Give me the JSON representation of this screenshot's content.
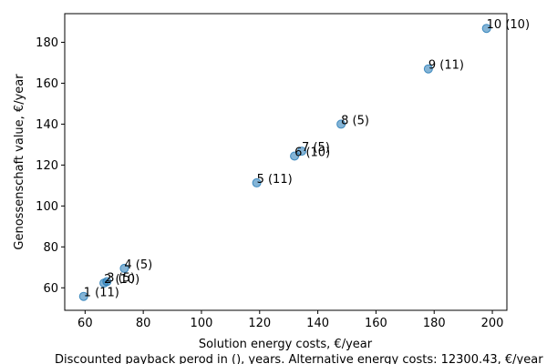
{
  "chart_data": {
    "type": "scatter",
    "xlabel": "Solution energy costs, €/year",
    "ylabel": "Genossenschaft value, €/year",
    "caption": "Discounted payback perod in (), years. Alternative energy costs: 12300.43, €/year",
    "xlim": [
      53,
      205
    ],
    "ylim": [
      49,
      194
    ],
    "xticks": [
      60,
      80,
      100,
      120,
      140,
      160,
      180,
      200
    ],
    "yticks": [
      60,
      80,
      100,
      120,
      140,
      160,
      180
    ],
    "grid": false,
    "marker_color": "#1f77b4",
    "points": [
      {
        "x": 59.5,
        "y": 55.8,
        "label": "1 (11)"
      },
      {
        "x": 66.5,
        "y": 62.3,
        "label": "2 (10)"
      },
      {
        "x": 67.5,
        "y": 63.0,
        "label": "3 (5)"
      },
      {
        "x": 73.5,
        "y": 69.5,
        "label": "4 (5)"
      },
      {
        "x": 119.0,
        "y": 111.3,
        "label": "5 (11)"
      },
      {
        "x": 132.0,
        "y": 124.4,
        "label": "6 (10)"
      },
      {
        "x": 134.5,
        "y": 126.8,
        "label": "7 (5)"
      },
      {
        "x": 148.0,
        "y": 140.0,
        "label": "8 (5)"
      },
      {
        "x": 178.0,
        "y": 167.0,
        "label": "9 (11)"
      },
      {
        "x": 198.0,
        "y": 186.8,
        "label": "10 (10)"
      }
    ]
  }
}
